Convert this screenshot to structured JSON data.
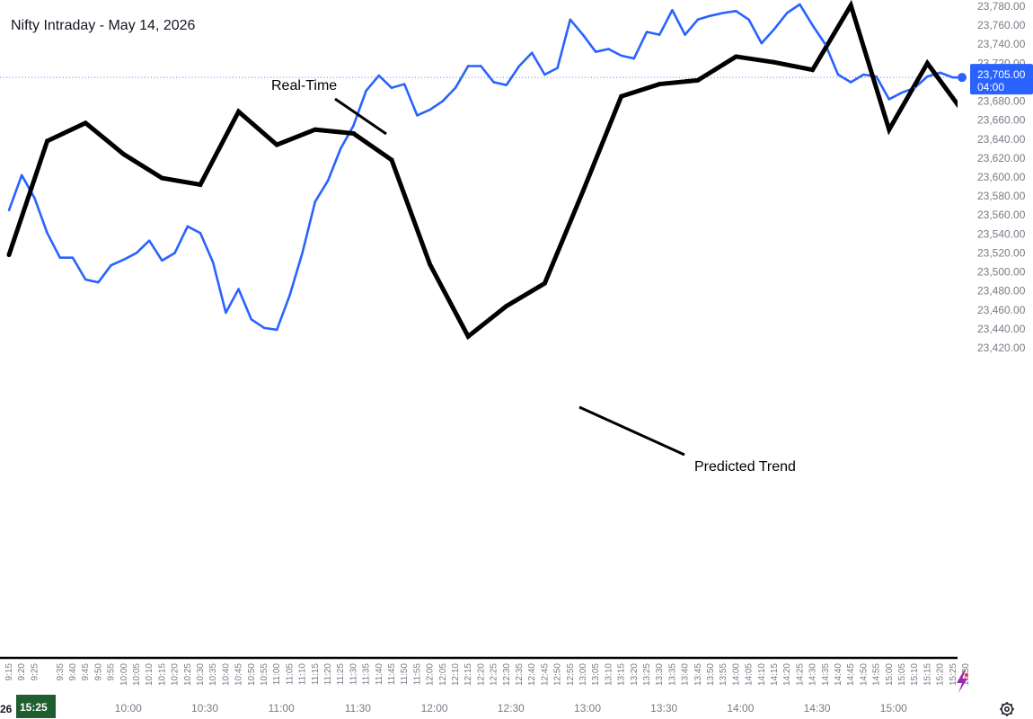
{
  "chart_data": {
    "type": "line",
    "title": "Nifty Intraday - May 14, 2026",
    "ylim": [
      23420,
      23780
    ],
    "y_ticks": [
      23420,
      23440,
      23460,
      23480,
      23500,
      23520,
      23540,
      23560,
      23580,
      23600,
      23620,
      23640,
      23660,
      23680,
      23700,
      23720,
      23740,
      23760,
      23780
    ],
    "y_tick_labels": [
      "23,420.00",
      "23,440.00",
      "23,460.00",
      "23,480.00",
      "23,500.00",
      "23,520.00",
      "23,540.00",
      "23,560.00",
      "23,580.00",
      "23,600.00",
      "23,620.00",
      "23,640.00",
      "23,660.00",
      "23,680.00",
      "23,700.00",
      "23,720.00",
      "23,740.00",
      "23,760.00",
      "23,780.00"
    ],
    "x_small_labels": [
      "9:15",
      "9:20",
      "9:25",
      "9:35",
      "9:40",
      "9:45",
      "9:50",
      "9:55",
      "10:00",
      "10:05",
      "10:10",
      "10:15",
      "10:20",
      "10:25",
      "10:30",
      "10:35",
      "10:40",
      "10:45",
      "10:50",
      "10:55",
      "11:00",
      "11:05",
      "11:10",
      "11:15",
      "11:20",
      "11:25",
      "11:30",
      "11:35",
      "11:40",
      "11:45",
      "11:50",
      "11:55",
      "12:00",
      "12:05",
      "12:10",
      "12:15",
      "12:20",
      "12:25",
      "12:30",
      "12:35",
      "12:40",
      "12:45",
      "12:50",
      "12:55",
      "13:00",
      "13:05",
      "13:10",
      "13:15",
      "13:20",
      "13:25",
      "13:30",
      "13:35",
      "13:40",
      "13:45",
      "13:50",
      "13:55",
      "14:00",
      "14:05",
      "14:10",
      "14:15",
      "14:20",
      "14:25",
      "14:30",
      "14:35",
      "14:40",
      "14:45",
      "14:50",
      "14:55",
      "15:00",
      "15:05",
      "15:10",
      "15:15",
      "15:20",
      "15:25",
      "15:30"
    ],
    "x_major_labels": [
      "10:00",
      "10:30",
      "11:00",
      "11:30",
      "12:00",
      "12:30",
      "13:00",
      "13:30",
      "14:00",
      "14:30",
      "15:00"
    ],
    "series": [
      {
        "name": "Real-Time",
        "color": "#2962ff",
        "x": [
          "9:15",
          "9:20",
          "9:25",
          "9:30",
          "9:35",
          "9:40",
          "9:45",
          "9:50",
          "9:55",
          "10:00",
          "10:05",
          "10:10",
          "10:15",
          "10:20",
          "10:25",
          "10:30",
          "10:35",
          "10:40",
          "10:45",
          "10:50",
          "10:55",
          "11:00",
          "11:05",
          "11:10",
          "11:15",
          "11:20",
          "11:25",
          "11:30",
          "11:35",
          "11:40",
          "11:45",
          "11:50",
          "11:55",
          "12:00",
          "12:05",
          "12:10",
          "12:15",
          "12:20",
          "12:25",
          "12:30",
          "12:35",
          "12:40",
          "12:45",
          "12:50",
          "12:55",
          "13:00",
          "13:05",
          "13:10",
          "13:15",
          "13:20",
          "13:25",
          "13:30",
          "13:35",
          "13:40",
          "13:45",
          "13:50",
          "13:55",
          "14:00",
          "14:05",
          "14:10",
          "14:15",
          "14:20",
          "14:25",
          "14:30",
          "14:35",
          "14:40",
          "14:45",
          "14:50",
          "14:55",
          "15:00",
          "15:05",
          "15:10",
          "15:15",
          "15:20",
          "15:25",
          "15:30"
        ],
        "values": [
          23565,
          23602,
          23578,
          23541,
          23515,
          23515,
          23492,
          23489,
          23507,
          23513,
          23520,
          23533,
          23512,
          23520,
          23548,
          23541,
          23510,
          23457,
          23482,
          23450,
          23441,
          23439,
          23475,
          23520,
          23574,
          23596,
          23630,
          23654,
          23691,
          23707,
          23694,
          23698,
          23665,
          23671,
          23680,
          23694,
          23717,
          23717,
          23700,
          23697,
          23717,
          23731,
          23708,
          23715,
          23766,
          23750,
          23732,
          23735,
          23728,
          23725,
          23753,
          23750,
          23776,
          23750,
          23766,
          23770,
          23773,
          23775,
          23766,
          23741,
          23756,
          23773,
          23782,
          23760,
          23740,
          23708,
          23700,
          23708,
          23706,
          23682,
          23689,
          23694,
          23706,
          23710,
          23705,
          23705
        ]
      },
      {
        "name": "Predicted Trend",
        "color": "#000000",
        "x": [
          "9:15",
          "9:30",
          "9:45",
          "10:00",
          "10:15",
          "10:30",
          "10:45",
          "11:00",
          "11:15",
          "11:30",
          "11:45",
          "12:00",
          "12:15",
          "12:30",
          "12:45",
          "13:00",
          "13:15",
          "13:30",
          "13:45",
          "14:00",
          "14:15",
          "14:30",
          "14:45",
          "15:00",
          "15:15",
          "15:30"
        ],
        "values": [
          23518,
          23638,
          23657,
          23624,
          23599,
          23592,
          23669,
          23634,
          23650,
          23646,
          23618,
          23508,
          23432,
          23464,
          23488,
          23585,
          23685,
          23698,
          23702,
          23727,
          23721,
          23713,
          23781,
          23650,
          23720,
          23665
        ]
      }
    ],
    "annotations": [
      {
        "text": "Real-Time",
        "series": "Real-Time",
        "x": "11:40",
        "y": 23712
      },
      {
        "text": "Predicted Trend",
        "series": "Predicted Trend",
        "x": "12:55",
        "y": 23570
      }
    ],
    "last_value_label": "23,705.00",
    "countdown_label": "04:00",
    "reference_line": 23705,
    "grid": false,
    "legend": "none"
  },
  "footer": {
    "date_fragment": "26",
    "time_badge": "15:25"
  },
  "colors": {
    "realtime_line": "#2962ff",
    "predicted_line": "#000000",
    "axis_text": "#787b86",
    "time_badge_bg": "#1e5e2f"
  },
  "icons": {
    "settings": "gear-icon",
    "lightning": "lightning-icon"
  }
}
